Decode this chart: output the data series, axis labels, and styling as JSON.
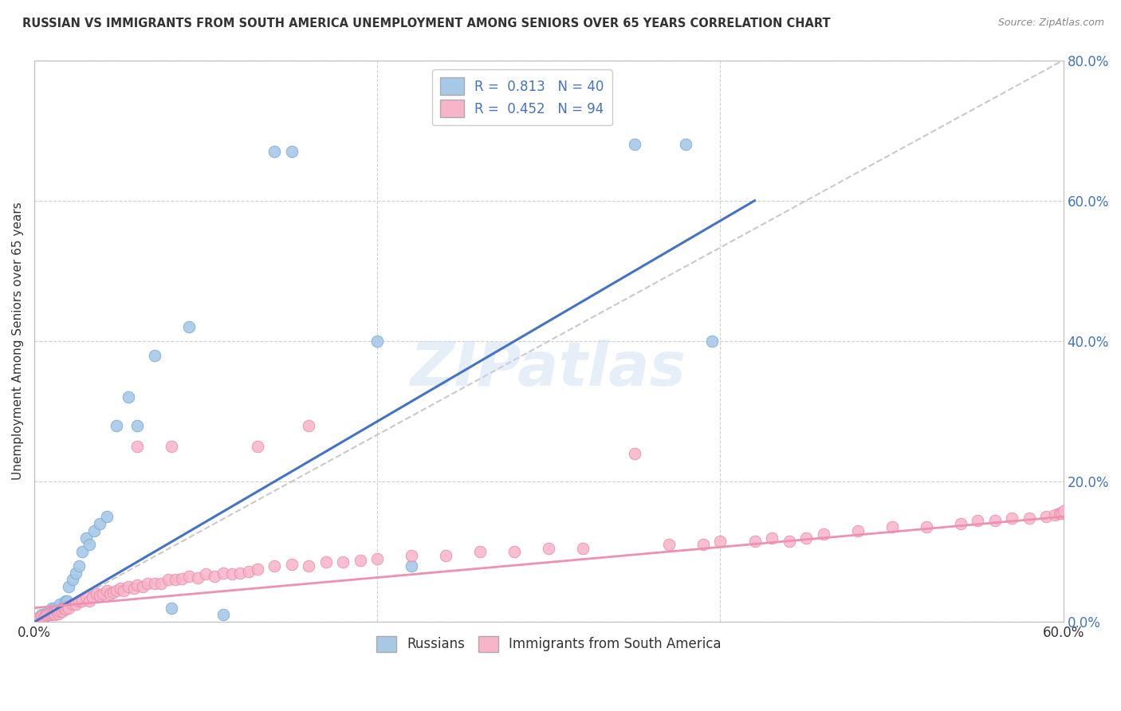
{
  "title": "RUSSIAN VS IMMIGRANTS FROM SOUTH AMERICA UNEMPLOYMENT AMONG SENIORS OVER 65 YEARS CORRELATION CHART",
  "source": "Source: ZipAtlas.com",
  "ylabel": "Unemployment Among Seniors over 65 years",
  "right_yticks": [
    "0.0%",
    "20.0%",
    "40.0%",
    "60.0%",
    "80.0%"
  ],
  "right_ytick_vals": [
    0.0,
    0.2,
    0.4,
    0.6,
    0.8
  ],
  "legend_russian_R": "0.813",
  "legend_russian_N": "40",
  "legend_sa_R": "0.452",
  "legend_sa_N": "94",
  "legend_label_russian": "Russians",
  "legend_label_sa": "Immigrants from South America",
  "russian_color": "#a8c8e8",
  "russian_edge": "#7aaed4",
  "sa_color": "#f8b4c8",
  "sa_edge": "#e88aaa",
  "line_russian_color": "#4472c4",
  "line_sa_color": "#f090b0",
  "dash_line_color": "#c0c0c0",
  "watermark": "ZIPatlas",
  "title_color": "#333333",
  "right_axis_color": "#4472c4",
  "xlim": [
    0.0,
    0.6
  ],
  "ylim": [
    0.0,
    0.8
  ],
  "rus_x": [
    0.002,
    0.003,
    0.004,
    0.005,
    0.006,
    0.007,
    0.008,
    0.009,
    0.01,
    0.011,
    0.012,
    0.013,
    0.015,
    0.016,
    0.018,
    0.019,
    0.02,
    0.022,
    0.024,
    0.026,
    0.028,
    0.03,
    0.032,
    0.035,
    0.038,
    0.042,
    0.048,
    0.055,
    0.06,
    0.07,
    0.08,
    0.09,
    0.11,
    0.14,
    0.15,
    0.2,
    0.22,
    0.35,
    0.38,
    0.395
  ],
  "rus_y": [
    0.005,
    0.005,
    0.01,
    0.005,
    0.01,
    0.01,
    0.015,
    0.01,
    0.02,
    0.015,
    0.02,
    0.015,
    0.025,
    0.02,
    0.03,
    0.03,
    0.05,
    0.06,
    0.07,
    0.08,
    0.1,
    0.12,
    0.11,
    0.13,
    0.14,
    0.15,
    0.28,
    0.32,
    0.28,
    0.38,
    0.02,
    0.42,
    0.01,
    0.67,
    0.67,
    0.4,
    0.08,
    0.68,
    0.68,
    0.4
  ],
  "sa_x": [
    0.001,
    0.002,
    0.003,
    0.004,
    0.005,
    0.006,
    0.007,
    0.008,
    0.009,
    0.01,
    0.011,
    0.012,
    0.013,
    0.014,
    0.015,
    0.016,
    0.017,
    0.018,
    0.019,
    0.02,
    0.022,
    0.024,
    0.026,
    0.028,
    0.03,
    0.032,
    0.034,
    0.036,
    0.038,
    0.04,
    0.042,
    0.044,
    0.046,
    0.048,
    0.05,
    0.052,
    0.055,
    0.058,
    0.06,
    0.063,
    0.066,
    0.07,
    0.074,
    0.078,
    0.082,
    0.086,
    0.09,
    0.095,
    0.1,
    0.105,
    0.11,
    0.115,
    0.12,
    0.125,
    0.13,
    0.14,
    0.15,
    0.16,
    0.17,
    0.18,
    0.19,
    0.2,
    0.22,
    0.24,
    0.26,
    0.28,
    0.3,
    0.32,
    0.35,
    0.37,
    0.39,
    0.4,
    0.42,
    0.43,
    0.44,
    0.45,
    0.46,
    0.48,
    0.5,
    0.52,
    0.54,
    0.55,
    0.56,
    0.57,
    0.58,
    0.59,
    0.595,
    0.598,
    0.599,
    0.6,
    0.06,
    0.08,
    0.13,
    0.16
  ],
  "sa_y": [
    0.005,
    0.005,
    0.005,
    0.008,
    0.005,
    0.008,
    0.01,
    0.01,
    0.012,
    0.01,
    0.012,
    0.01,
    0.015,
    0.012,
    0.015,
    0.015,
    0.02,
    0.018,
    0.022,
    0.02,
    0.025,
    0.025,
    0.03,
    0.03,
    0.035,
    0.03,
    0.035,
    0.04,
    0.038,
    0.04,
    0.045,
    0.04,
    0.042,
    0.045,
    0.048,
    0.045,
    0.05,
    0.048,
    0.052,
    0.05,
    0.055,
    0.055,
    0.055,
    0.06,
    0.06,
    0.062,
    0.065,
    0.063,
    0.068,
    0.065,
    0.07,
    0.068,
    0.07,
    0.072,
    0.075,
    0.08,
    0.082,
    0.08,
    0.085,
    0.085,
    0.088,
    0.09,
    0.095,
    0.095,
    0.1,
    0.1,
    0.105,
    0.105,
    0.24,
    0.11,
    0.11,
    0.115,
    0.115,
    0.12,
    0.115,
    0.12,
    0.125,
    0.13,
    0.135,
    0.135,
    0.14,
    0.145,
    0.145,
    0.148,
    0.148,
    0.15,
    0.152,
    0.155,
    0.155,
    0.158,
    0.25,
    0.25,
    0.25,
    0.28
  ]
}
